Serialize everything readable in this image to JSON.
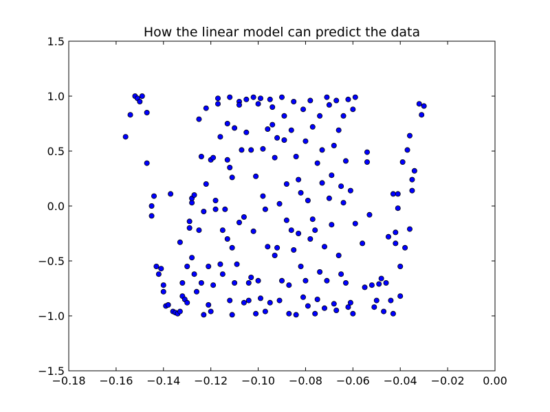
{
  "chart_data": {
    "type": "scatter",
    "title": "How the linear model can predict the data",
    "xlabel": "",
    "ylabel": "",
    "xlim": [
      -0.18,
      0.0
    ],
    "ylim": [
      -1.5,
      1.5
    ],
    "xticks": [
      -0.18,
      -0.16,
      -0.14,
      -0.12,
      -0.1,
      -0.08,
      -0.06,
      -0.04,
      -0.02,
      0.0
    ],
    "xtick_labels": [
      "−0.18",
      "−0.16",
      "−0.14",
      "−0.12",
      "−0.10",
      "−0.08",
      "−0.06",
      "−0.04",
      "−0.02",
      "0.00"
    ],
    "yticks": [
      1.5,
      1.0,
      0.5,
      0.0,
      -0.5,
      -1.0,
      -1.5
    ],
    "ytick_labels": [
      "1.5",
      "1.0",
      "0.5",
      "0.0",
      "−0.5",
      "−1.0",
      "−1.5"
    ],
    "grid": false,
    "marker_color": "#0000ff",
    "marker_edge_color": "#000000",
    "points": [
      [
        -0.156,
        0.63
      ],
      [
        -0.154,
        0.83
      ],
      [
        -0.152,
        1.0
      ],
      [
        -0.151,
        0.98
      ],
      [
        -0.15,
        0.95
      ],
      [
        -0.149,
        1.0
      ],
      [
        -0.147,
        0.85
      ],
      [
        -0.147,
        0.39
      ],
      [
        -0.145,
        -0.09
      ],
      [
        -0.145,
        0.0
      ],
      [
        -0.144,
        0.09
      ],
      [
        -0.143,
        -0.55
      ],
      [
        -0.142,
        -0.62
      ],
      [
        -0.141,
        -0.57
      ],
      [
        -0.14,
        -0.72
      ],
      [
        -0.14,
        -0.78
      ],
      [
        -0.139,
        -0.91
      ],
      [
        -0.138,
        -0.9
      ],
      [
        -0.137,
        0.11
      ],
      [
        -0.136,
        -0.96
      ],
      [
        -0.135,
        -0.97
      ],
      [
        -0.134,
        -0.98
      ],
      [
        -0.133,
        -0.96
      ],
      [
        -0.133,
        -0.33
      ],
      [
        -0.132,
        -0.7
      ],
      [
        -0.132,
        -0.82
      ],
      [
        -0.131,
        -0.85
      ],
      [
        -0.13,
        -0.88
      ],
      [
        -0.13,
        -0.55
      ],
      [
        -0.129,
        -0.2
      ],
      [
        -0.129,
        -0.14
      ],
      [
        -0.128,
        0.03
      ],
      [
        -0.128,
        0.07
      ],
      [
        -0.128,
        -0.47
      ],
      [
        -0.127,
        -0.62
      ],
      [
        -0.127,
        0.1
      ],
      [
        -0.126,
        -0.78
      ],
      [
        -0.125,
        0.79
      ],
      [
        -0.125,
        -0.22
      ],
      [
        -0.124,
        0.45
      ],
      [
        -0.124,
        -0.7
      ],
      [
        -0.123,
        -0.99
      ],
      [
        -0.123,
        -0.05
      ],
      [
        -0.122,
        0.89
      ],
      [
        -0.122,
        0.2
      ],
      [
        -0.121,
        -0.9
      ],
      [
        -0.121,
        -0.55
      ],
      [
        -0.12,
        -0.96
      ],
      [
        -0.12,
        0.42
      ],
      [
        -0.119,
        0.44
      ],
      [
        -0.119,
        -0.72
      ],
      [
        -0.118,
        0.05
      ],
      [
        -0.118,
        -0.03
      ],
      [
        -0.117,
        0.93
      ],
      [
        -0.117,
        0.98
      ],
      [
        -0.116,
        0.63
      ],
      [
        -0.116,
        -0.53
      ],
      [
        -0.115,
        -0.62
      ],
      [
        -0.115,
        -0.22
      ],
      [
        -0.114,
        -0.03
      ],
      [
        -0.113,
        0.42
      ],
      [
        -0.113,
        0.75
      ],
      [
        -0.113,
        -0.3
      ],
      [
        -0.112,
        0.99
      ],
      [
        -0.112,
        0.35
      ],
      [
        -0.112,
        -0.86
      ],
      [
        -0.111,
        -0.99
      ],
      [
        -0.111,
        0.26
      ],
      [
        -0.111,
        -0.38
      ],
      [
        -0.11,
        0.71
      ],
      [
        -0.11,
        -0.7
      ],
      [
        -0.109,
        -0.53
      ],
      [
        -0.108,
        0.95
      ],
      [
        -0.108,
        0.92
      ],
      [
        -0.108,
        -0.15
      ],
      [
        -0.107,
        0.51
      ],
      [
        -0.106,
        -0.1
      ],
      [
        -0.106,
        -0.88
      ],
      [
        -0.105,
        0.97
      ],
      [
        -0.105,
        0.67
      ],
      [
        -0.104,
        -0.7
      ],
      [
        -0.104,
        -0.86
      ],
      [
        -0.103,
        -0.65
      ],
      [
        -0.103,
        0.51
      ],
      [
        -0.102,
        0.99
      ],
      [
        -0.102,
        -0.23
      ],
      [
        -0.101,
        -0.98
      ],
      [
        -0.101,
        0.27
      ],
      [
        -0.1,
        -0.68
      ],
      [
        -0.1,
        0.93
      ],
      [
        -0.099,
        0.98
      ],
      [
        -0.099,
        -0.84
      ],
      [
        -0.098,
        0.52
      ],
      [
        -0.098,
        0.09
      ],
      [
        -0.097,
        -0.03
      ],
      [
        -0.097,
        -0.96
      ],
      [
        -0.096,
        0.7
      ],
      [
        -0.096,
        -0.37
      ],
      [
        -0.095,
        -0.88
      ],
      [
        -0.095,
        0.97
      ],
      [
        -0.094,
        0.74
      ],
      [
        -0.094,
        0.9
      ],
      [
        -0.093,
        0.44
      ],
      [
        -0.093,
        -0.45
      ],
      [
        -0.092,
        -0.38
      ],
      [
        -0.092,
        0.62
      ],
      [
        -0.091,
        -0.86
      ],
      [
        -0.091,
        0.02
      ],
      [
        -0.09,
        -0.68
      ],
      [
        -0.09,
        0.99
      ],
      [
        -0.089,
        0.82
      ],
      [
        -0.089,
        0.6
      ],
      [
        -0.088,
        -0.13
      ],
      [
        -0.088,
        0.2
      ],
      [
        -0.087,
        -0.72
      ],
      [
        -0.087,
        -0.98
      ],
      [
        -0.086,
        0.69
      ],
      [
        -0.086,
        -0.22
      ],
      [
        -0.085,
        -0.4
      ],
      [
        -0.085,
        0.95
      ],
      [
        -0.084,
        0.45
      ],
      [
        -0.084,
        -0.99
      ],
      [
        -0.083,
        0.24
      ],
      [
        -0.083,
        -0.25
      ],
      [
        -0.082,
        -0.55
      ],
      [
        -0.082,
        0.12
      ],
      [
        -0.081,
        -0.83
      ],
      [
        -0.081,
        0.88
      ],
      [
        -0.08,
        -0.68
      ],
      [
        -0.08,
        0.59
      ],
      [
        -0.079,
        0.05
      ],
      [
        -0.079,
        -0.91
      ],
      [
        -0.078,
        -0.3
      ],
      [
        -0.078,
        0.96
      ],
      [
        -0.077,
        -0.12
      ],
      [
        -0.077,
        0.72
      ],
      [
        -0.076,
        -0.22
      ],
      [
        -0.076,
        -0.98
      ],
      [
        -0.075,
        0.39
      ],
      [
        -0.075,
        -0.85
      ],
      [
        -0.074,
        0.82
      ],
      [
        -0.074,
        -0.6
      ],
      [
        -0.073,
        0.21
      ],
      [
        -0.073,
        0.51
      ],
      [
        -0.072,
        -0.37
      ],
      [
        -0.072,
        -0.93
      ],
      [
        -0.071,
        0.99
      ],
      [
        -0.071,
        -0.68
      ],
      [
        -0.07,
        0.07
      ],
      [
        -0.07,
        0.92
      ],
      [
        -0.069,
        0.28
      ],
      [
        -0.069,
        -0.17
      ],
      [
        -0.068,
        -0.89
      ],
      [
        -0.068,
        0.55
      ],
      [
        -0.067,
        0.96
      ],
      [
        -0.067,
        -0.95
      ],
      [
        -0.066,
        0.69
      ],
      [
        -0.066,
        -0.45
      ],
      [
        -0.065,
        0.18
      ],
      [
        -0.065,
        -0.62
      ],
      [
        -0.064,
        0.03
      ],
      [
        -0.064,
        0.82
      ],
      [
        -0.063,
        -0.7
      ],
      [
        -0.063,
        0.41
      ],
      [
        -0.062,
        -0.92
      ],
      [
        -0.062,
        0.97
      ],
      [
        -0.061,
        0.14
      ],
      [
        -0.061,
        -0.88
      ],
      [
        -0.06,
        0.88
      ],
      [
        -0.06,
        -0.98
      ],
      [
        -0.059,
        0.99
      ],
      [
        -0.059,
        -0.16
      ],
      [
        -0.056,
        -0.34
      ],
      [
        -0.055,
        -0.74
      ],
      [
        -0.054,
        0.49
      ],
      [
        -0.054,
        0.4
      ],
      [
        -0.053,
        -0.08
      ],
      [
        -0.052,
        -0.72
      ],
      [
        -0.051,
        -0.92
      ],
      [
        -0.05,
        -0.86
      ],
      [
        -0.049,
        -0.71
      ],
      [
        -0.048,
        -0.66
      ],
      [
        -0.047,
        -0.96
      ],
      [
        -0.046,
        -0.7
      ],
      [
        -0.045,
        -0.28
      ],
      [
        -0.044,
        -0.86
      ],
      [
        -0.043,
        -0.98
      ],
      [
        -0.043,
        0.11
      ],
      [
        -0.042,
        -0.34
      ],
      [
        -0.042,
        -0.24
      ],
      [
        -0.041,
        0.11
      ],
      [
        -0.041,
        -0.02
      ],
      [
        -0.04,
        -0.55
      ],
      [
        -0.04,
        -0.82
      ],
      [
        -0.039,
        0.4
      ],
      [
        -0.038,
        -0.38
      ],
      [
        -0.037,
        0.51
      ],
      [
        -0.036,
        -0.21
      ],
      [
        -0.036,
        0.64
      ],
      [
        -0.035,
        0.14
      ],
      [
        -0.035,
        0.24
      ],
      [
        -0.034,
        0.32
      ],
      [
        -0.032,
        0.93
      ],
      [
        -0.031,
        0.83
      ],
      [
        -0.03,
        0.91
      ]
    ]
  }
}
